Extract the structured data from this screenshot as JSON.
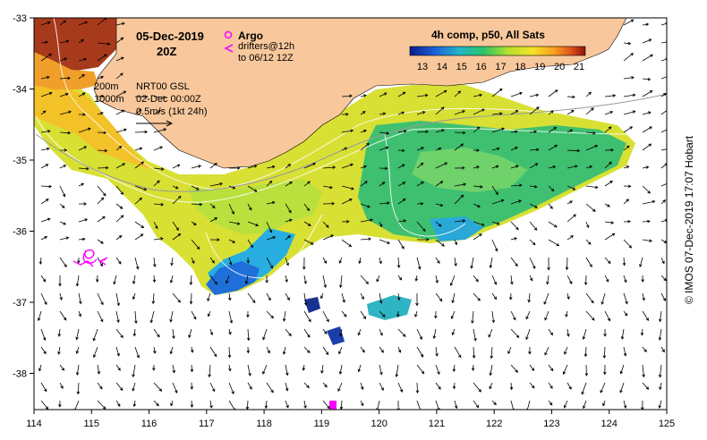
{
  "header": {
    "date": "05-Dec-2019",
    "time": "20Z"
  },
  "legend": {
    "argo_label": "Argo",
    "drifters_line1": "drifters@12h",
    "drifters_line2": "to 06/12 12Z",
    "contour_200": "200m",
    "contour_1000": "1000m",
    "nrt_label": "NRT00 GSL",
    "nrt_date": "02-Dec 00:00Z",
    "scale_label": "0.5m/s (1kt 24h)"
  },
  "colorbar": {
    "title": "4h comp, p50, All Sats",
    "ticks": [
      "13",
      "14",
      "15",
      "16",
      "17",
      "18",
      "19",
      "20",
      "21"
    ]
  },
  "axes": {
    "x_ticks": [
      "114",
      "115",
      "116",
      "117",
      "118",
      "119",
      "120",
      "121",
      "122",
      "123",
      "124",
      "125"
    ],
    "y_ticks": [
      "-33",
      "-34",
      "-35",
      "-36",
      "-37",
      "-38"
    ]
  },
  "credit": "© IMOS 07-Dec-2019 17:07 Hobart",
  "colors": {
    "land": "#f8c89c",
    "argo": "#ff00ff",
    "drifter": "#ff00ff"
  }
}
